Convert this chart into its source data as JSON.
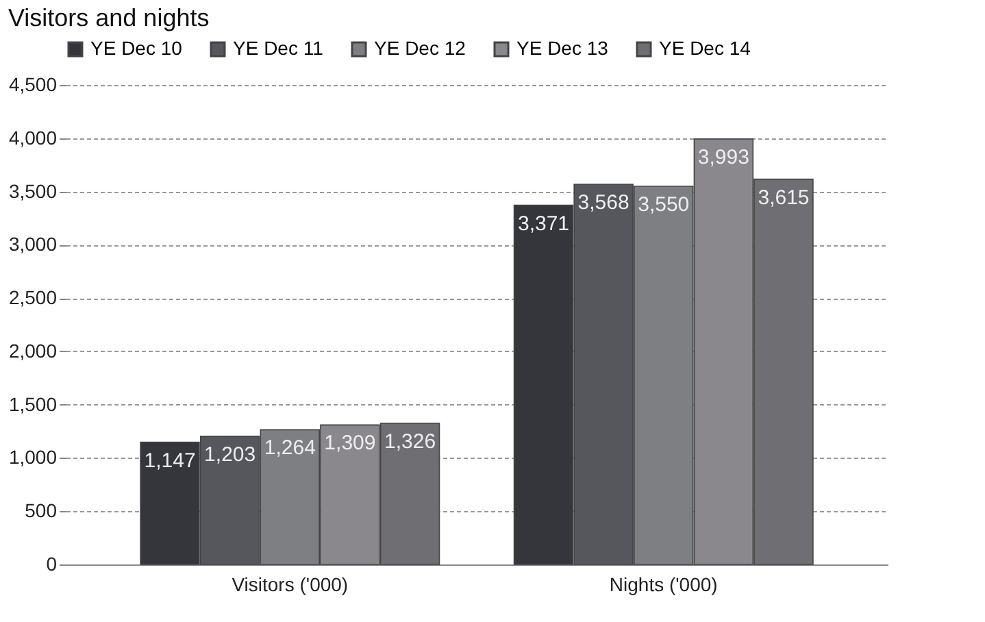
{
  "chart_data": {
    "type": "bar",
    "title": "Visitors and nights",
    "categories": [
      "Visitors ('000)",
      "Nights ('000)"
    ],
    "series": [
      {
        "name": "YE Dec 10",
        "color": "#34363c",
        "values": [
          1147,
          3371
        ],
        "value_labels": [
          "1,147",
          "3,371"
        ]
      },
      {
        "name": "YE Dec 11",
        "color": "#55575d",
        "values": [
          1203,
          3568
        ],
        "value_labels": [
          "1,203",
          "3,568"
        ]
      },
      {
        "name": "YE Dec 12",
        "color": "#7e7f83",
        "values": [
          1264,
          3550
        ],
        "value_labels": [
          "1,264",
          "3,550"
        ]
      },
      {
        "name": "YE Dec 13",
        "color": "#8a888c",
        "values": [
          1309,
          3993
        ],
        "value_labels": [
          "1,309",
          "3,993"
        ]
      },
      {
        "name": "YE Dec 14",
        "color": "#6f6f73",
        "values": [
          1326,
          3615
        ],
        "value_labels": [
          "1,326",
          "3,615"
        ]
      }
    ],
    "ylim": [
      0,
      4500
    ],
    "yticks": [
      0,
      500,
      {
        "value": 1000,
        "label": "1,000"
      },
      {
        "value": 1500,
        "label": "1,500"
      },
      {
        "value": 2000,
        "label": "2,000"
      },
      {
        "value": 2500,
        "label": "2,500"
      },
      {
        "value": 3000,
        "label": "3,000"
      },
      {
        "value": 3500,
        "label": "3,500"
      },
      {
        "value": 4000,
        "label": "4,000"
      },
      {
        "value": 4500,
        "label": "4,500"
      }
    ],
    "grid": "y",
    "legend": "top"
  }
}
